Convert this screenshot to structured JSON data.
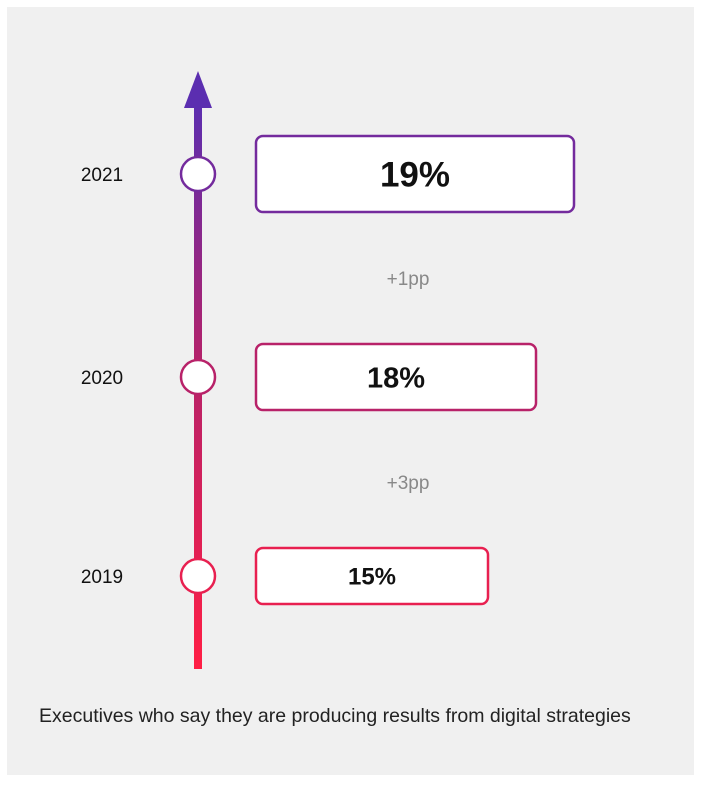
{
  "caption": "Executives who say they are producing results from digital strategies",
  "chart_data": {
    "type": "timeline",
    "points": [
      {
        "year": "2021",
        "value": 19,
        "label": "19%"
      },
      {
        "year": "2020",
        "value": 18,
        "label": "18%"
      },
      {
        "year": "2019",
        "value": 15,
        "label": "15%"
      }
    ],
    "changes": [
      {
        "from": "2020",
        "to": "2021",
        "label": "+1pp"
      },
      {
        "from": "2019",
        "to": "2020",
        "label": "+3pp"
      }
    ],
    "colors": {
      "top": "#5b2eb0",
      "mid": "#b3226b",
      "bottom": "#ff1f45",
      "background": "#f0f0f0"
    }
  }
}
